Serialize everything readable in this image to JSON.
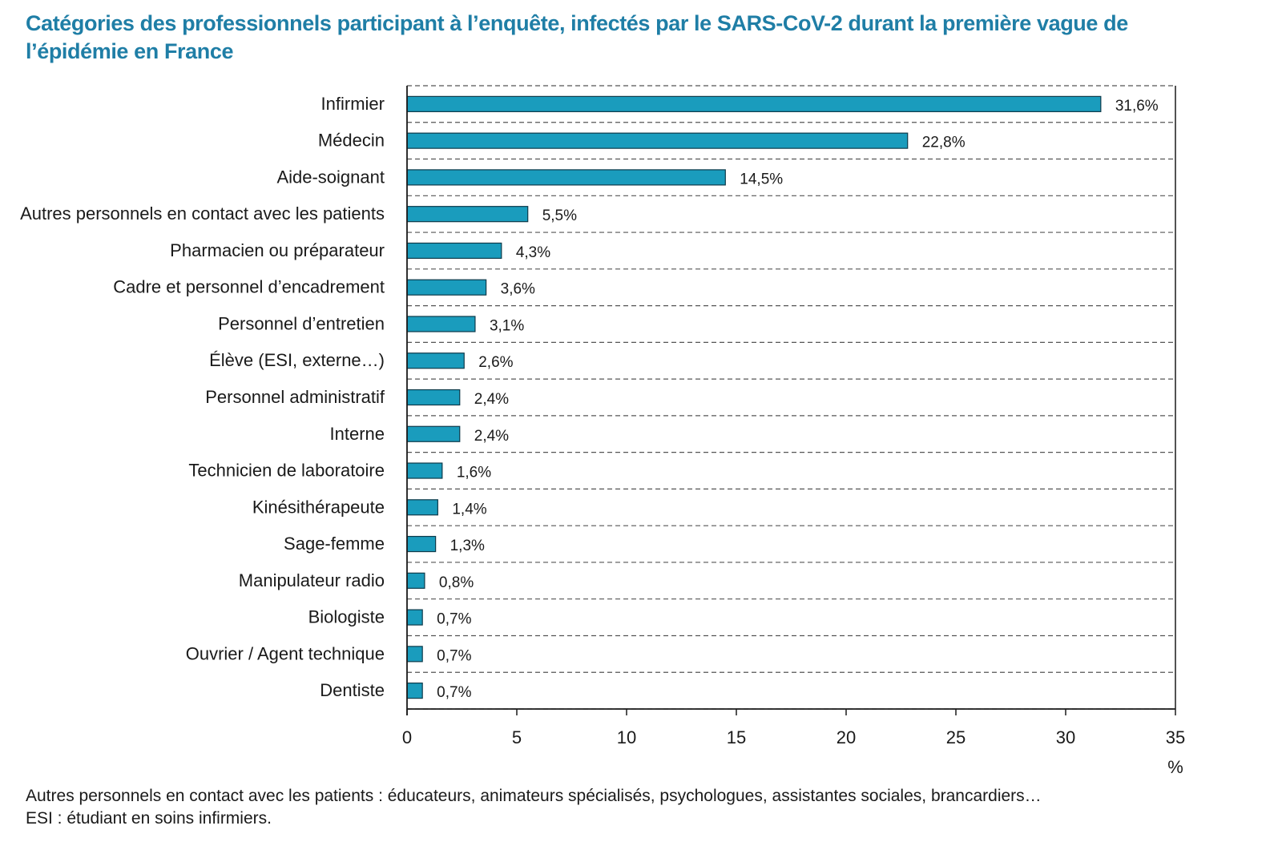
{
  "colors": {
    "title": "#1f7ea6",
    "bar_fill": "#1a9cbd",
    "bar_stroke": "#0e3a4a",
    "axis": "#1a1a1a",
    "grid": "#555555",
    "text": "#1a1a1a"
  },
  "chart_data": {
    "type": "bar",
    "orientation": "horizontal",
    "title": "Catégories des professionnels participant à l’enquête, infectés par le SARS-CoV-2 durant la première vague de l’épidémie en France",
    "xlabel": "%",
    "ylabel": "",
    "xlim": [
      0,
      35
    ],
    "xticks": [
      0,
      5,
      10,
      15,
      20,
      25,
      30,
      35
    ],
    "grid": "horizontal-dashed",
    "categories": [
      "Infirmier",
      "Médecin",
      "Aide-soignant",
      "Autres personnels en contact avec les patients",
      "Pharmacien ou préparateur",
      "Cadre et personnel d’encadrement",
      "Personnel d’entretien",
      "Élève (ESI, externe…)",
      "Personnel administratif",
      "Interne",
      "Technicien de laboratoire",
      "Kinésithérapeute",
      "Sage-femme",
      "Manipulateur radio",
      "Biologiste",
      "Ouvrier / Agent technique",
      "Dentiste"
    ],
    "values": [
      31.6,
      22.8,
      14.5,
      5.5,
      4.3,
      3.6,
      3.1,
      2.6,
      2.4,
      2.4,
      1.6,
      1.4,
      1.3,
      0.8,
      0.7,
      0.7,
      0.7
    ],
    "data_labels": [
      "31,6%",
      "22,8%",
      "14,5%",
      "5,5%",
      "4,3%",
      "3,6%",
      "3,1%",
      "2,6%",
      "2,4%",
      "2,4%",
      "1,6%",
      "1,4%",
      "1,3%",
      "0,8%",
      "0,7%",
      "0,7%",
      "0,7%"
    ]
  },
  "footnotes": {
    "line1": "Autres personnels en contact avec les patients : éducateurs, animateurs spécialisés, psychologues, assistantes sociales, brancardiers…",
    "line2": "ESI : étudiant en soins infirmiers."
  }
}
